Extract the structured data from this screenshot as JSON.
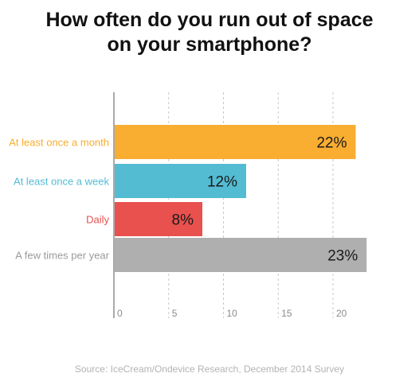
{
  "title_line1": "How often do you run out of space",
  "title_line2": "on your smartphone?",
  "source": "Source: IceCream/Ondevice Research, December 2014 Survey",
  "chart_data": {
    "type": "bar",
    "orientation": "horizontal",
    "title": "How often do you run out of space on your smartphone?",
    "categories": [
      "At least once a month",
      "At least once a week",
      "Daily",
      "A few times per year"
    ],
    "values": [
      22,
      12,
      8,
      23
    ],
    "value_labels": [
      "22%",
      "12%",
      "8%",
      "23%"
    ],
    "colors": [
      "#f9ad31",
      "#53bcd3",
      "#e9514e",
      "#afafaf"
    ],
    "xlim": [
      0,
      23.5
    ],
    "xticks": [
      0,
      5,
      10,
      15,
      20
    ],
    "xtick_labels": [
      "0",
      "5",
      "10",
      "15",
      "20"
    ],
    "grid": "vertical dashed",
    "legend": "none"
  }
}
